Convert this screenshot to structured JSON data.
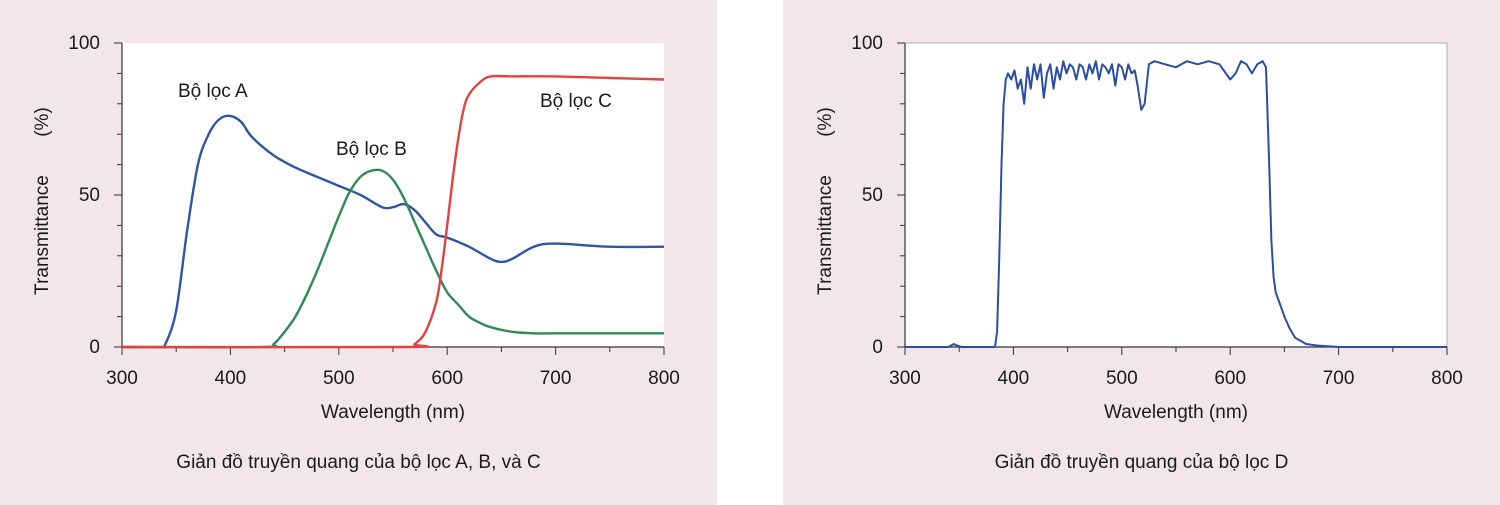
{
  "colors": {
    "background": "#f3e6ea",
    "plot_area": "#ffffff",
    "filter_a": "#2f56a6",
    "filter_b": "#2e8b57",
    "filter_c": "#e2433f",
    "filter_d": "#2a4ea3"
  },
  "chart_data": [
    {
      "type": "line",
      "caption": "Giản đồ truyền quang của bộ lọc A, B, và C",
      "xlabel": "Wavelength (nm)",
      "ylabel_parts": [
        "Transmittance",
        "(%)"
      ],
      "xlim": [
        300,
        800
      ],
      "ylim": [
        0,
        100
      ],
      "xticks": [
        300,
        400,
        500,
        600,
        700,
        800
      ],
      "yticks": [
        0,
        50,
        100
      ],
      "series": [
        {
          "name": "Bộ lọc A",
          "x": [
            300,
            335,
            340,
            350,
            360,
            370,
            380,
            390,
            400,
            410,
            420,
            440,
            460,
            480,
            500,
            520,
            540,
            550,
            560,
            570,
            580,
            590,
            600,
            620,
            640,
            650,
            660,
            680,
            700,
            750,
            800
          ],
          "y": [
            0,
            0,
            1,
            12,
            38,
            60,
            70,
            75,
            76,
            74,
            69,
            63,
            59,
            56,
            53,
            50,
            46,
            46,
            47,
            45,
            41,
            37,
            36,
            33,
            29,
            28,
            29,
            33,
            34,
            33,
            33
          ]
        },
        {
          "name": "Bộ lọc B",
          "x": [
            300,
            430,
            440,
            450,
            460,
            470,
            480,
            490,
            500,
            510,
            520,
            530,
            540,
            550,
            560,
            570,
            580,
            590,
            600,
            610,
            620,
            630,
            640,
            660,
            680,
            700,
            800
          ],
          "y": [
            0,
            0,
            1,
            5,
            10,
            17,
            25,
            34,
            43,
            51,
            56,
            58,
            58,
            55,
            49,
            41,
            33,
            25,
            18,
            14,
            10,
            8,
            6.5,
            5,
            4.5,
            4.5,
            4.5
          ]
        },
        {
          "name": "Bộ lọc C",
          "x": [
            300,
            560,
            570,
            580,
            590,
            595,
            600,
            605,
            610,
            615,
            620,
            630,
            640,
            660,
            700,
            750,
            800
          ],
          "y": [
            0,
            0,
            1,
            5,
            15,
            26,
            40,
            55,
            68,
            78,
            83,
            87,
            89,
            89,
            89,
            88.5,
            88
          ]
        }
      ],
      "annotations": [
        "Bộ lọc A",
        "Bộ lọc B",
        "Bộ lọc C"
      ]
    },
    {
      "type": "line",
      "caption": "Giản đồ truyền quang của bộ lọc D",
      "xlabel": "Wavelength (nm)",
      "ylabel_parts": [
        "Transmittance",
        "(%)"
      ],
      "xlim": [
        300,
        800
      ],
      "ylim": [
        0,
        100
      ],
      "xticks": [
        300,
        400,
        500,
        600,
        700,
        800
      ],
      "yticks": [
        0,
        50,
        100
      ],
      "series": [
        {
          "name": "Bộ lọc D",
          "x": [
            300,
            340,
            345,
            348,
            352,
            383,
            385,
            387,
            389,
            391,
            393,
            395,
            398,
            401,
            404,
            407,
            410,
            413,
            416,
            419,
            422,
            425,
            428,
            431,
            434,
            437,
            440,
            443,
            446,
            449,
            452,
            455,
            458,
            461,
            464,
            467,
            470,
            473,
            476,
            479,
            482,
            485,
            488,
            491,
            494,
            497,
            500,
            503,
            506,
            509,
            512,
            515,
            518,
            521,
            525,
            530,
            540,
            550,
            560,
            570,
            580,
            590,
            600,
            605,
            610,
            615,
            620,
            625,
            630,
            633,
            636,
            638,
            640,
            642,
            645,
            650,
            655,
            660,
            665,
            670,
            680,
            700,
            800
          ],
          "y": [
            0,
            0,
            1,
            0.5,
            0,
            0,
            5,
            30,
            60,
            80,
            88,
            90,
            88,
            91,
            85,
            88,
            80,
            92,
            85,
            93,
            88,
            93,
            82,
            90,
            93,
            85,
            92,
            88,
            94,
            90,
            93,
            92,
            88,
            93,
            92,
            88,
            93,
            90,
            94,
            88,
            93,
            92,
            90,
            93,
            86,
            93,
            92,
            88,
            93,
            90,
            91,
            85,
            78,
            80,
            93,
            94,
            93,
            92,
            94,
            93,
            94,
            93,
            88,
            90,
            94,
            93,
            90,
            93,
            94,
            92,
            60,
            35,
            23,
            18,
            15,
            10,
            6,
            3,
            2,
            1,
            0.5,
            0,
            0
          ]
        }
      ],
      "annotations": []
    }
  ]
}
